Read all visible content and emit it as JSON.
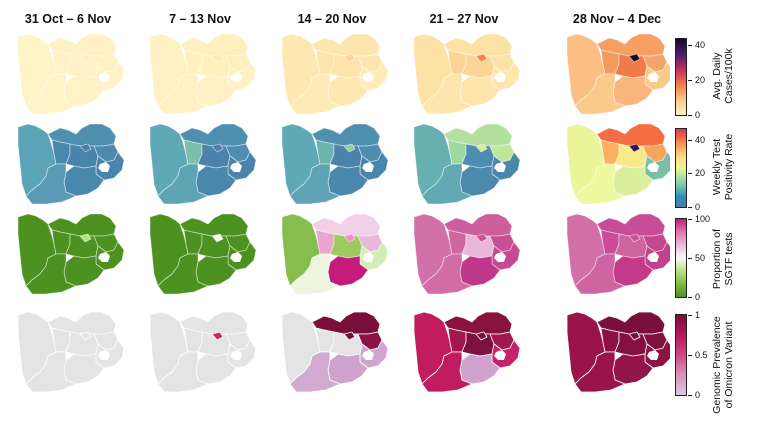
{
  "columns": [
    "31 Oct – 6 Nov",
    "7 – 13 Nov",
    "14 – 20 Nov",
    "21 – 27 Nov",
    "28 Nov – 4 Dec"
  ],
  "legends": [
    {
      "title_line1": "Avg. Daily",
      "title_line2": "Cases/100k",
      "ticks": [
        "40",
        "20",
        "0"
      ],
      "gradient": [
        "#15082a",
        "#4b1c6e",
        "#c02f60",
        "#f07a4a",
        "#fbc98a",
        "#fff2c8"
      ]
    },
    {
      "title_line1": "Weekly Test",
      "title_line2": "Positivity Rate",
      "ticks": [
        "40",
        "20",
        "0"
      ],
      "gradient": [
        "#d43d4f",
        "#f46d43",
        "#fdae61",
        "#fee08b",
        "#e6f598",
        "#abdda4",
        "#66c2a5",
        "#3288bd",
        "#4a7fa8"
      ]
    },
    {
      "title_line1": "Proportion of",
      "title_line2": "SGTF tests",
      "ticks": [
        "100",
        "50",
        "0"
      ],
      "gradient": [
        "#c51b7d",
        "#de77ae",
        "#f1b6da",
        "#f7f7f7",
        "#b8e186",
        "#7fbc41",
        "#4d9221"
      ]
    },
    {
      "title_line1": "Genomic Prevalence",
      "title_line2": "of Omicron Variant",
      "ticks": [
        "1",
        "0.5",
        "0"
      ],
      "gradient": [
        "#7a0f3a",
        "#b5185a",
        "#d1477f",
        "#d994bd",
        "#dcc6e0"
      ]
    }
  ],
  "map_colors": {
    "cases": [
      {
        "west": "#fff3c8",
        "north": "#fff1c3",
        "north_west": "#fff2c6",
        "free_state": "#fff2c6",
        "gauteng": "#ffefbe",
        "mpumalanga": "#fff1c3",
        "kzn": "#fff2c6",
        "east": "#fff2c6",
        "south": "#fff3c8"
      },
      {
        "west": "#fff1c3",
        "north": "#ffefbe",
        "north_west": "#fff0c0",
        "free_state": "#fff0c0",
        "gauteng": "#fee9b2",
        "mpumalanga": "#ffefbe",
        "kzn": "#fff1c3",
        "east": "#fff1c3",
        "south": "#fff1c3"
      },
      {
        "west": "#fde8b2",
        "north": "#fde6ad",
        "north_west": "#fde4aa",
        "free_state": "#fde4aa",
        "gauteng": "#fbd597",
        "mpumalanga": "#fde6ad",
        "kzn": "#feebb5",
        "east": "#fde8b2",
        "south": "#feebb5"
      },
      {
        "west": "#fde2a6",
        "north": "#fde2a6",
        "north_west": "#fbd597",
        "free_state": "#fbd597",
        "gauteng": "#f58456",
        "mpumalanga": "#fde2a6",
        "kzn": "#fde6ad",
        "east": "#fde4aa",
        "south": "#fde6ad"
      },
      {
        "west": "#fbbf84",
        "north": "#f59f63",
        "north_west": "#f49a60",
        "free_state": "#f07a4a",
        "gauteng": "#15082a",
        "mpumalanga": "#f6a56a",
        "kzn": "#fbc98a",
        "east": "#f9b57a",
        "south": "#fbc98a"
      }
    ],
    "positivity": [
      {
        "west": "#5ba3b6",
        "north": "#4f8fb0",
        "north_west": "#4a87ad",
        "free_state": "#4884ab",
        "gauteng": "#4a80a8",
        "mpumalanga": "#4d89ad",
        "kzn": "#4884ab",
        "east": "#4a87ad",
        "south": "#5a9ab4"
      },
      {
        "west": "#5fa8b6",
        "north": "#4f8fb0",
        "north_west": "#7bbfa8",
        "free_state": "#4a84ab",
        "gauteng": "#4a80a8",
        "mpumalanga": "#4f8db0",
        "kzn": "#4884ab",
        "east": "#4a87ad",
        "south": "#5ea4b4"
      },
      {
        "west": "#5fa8b6",
        "north": "#4f8fb0",
        "north_west": "#6cb4ab",
        "free_state": "#4a84ab",
        "gauteng": "#8ecfa4",
        "mpumalanga": "#4f8db0",
        "kzn": "#4884ab",
        "east": "#4a87ad",
        "south": "#5ea4b4"
      },
      {
        "west": "#66b0b1",
        "north": "#b4e09f",
        "north_west": "#9ed7a2",
        "free_state": "#4d8dae",
        "gauteng": "#d7ef9b",
        "mpumalanga": "#c3e69d",
        "kzn": "#4a87ad",
        "east": "#4d89ad",
        "south": "#63a9b4"
      },
      {
        "west": "#eaf59a",
        "north": "#f46d43",
        "north_west": "#fdae61",
        "free_state": "#f8e98c",
        "gauteng": "#311a4d",
        "mpumalanga": "#f9a45c",
        "kzn": "#77c0a4",
        "east": "#d9ef9b",
        "south": "#eef89e"
      }
    ],
    "sgtf": [
      {
        "west": "#4d9221",
        "north": "#4d9221",
        "north_west": "#4d9221",
        "free_state": "#4d9221",
        "gauteng": "#b8e186",
        "mpumalanga": "#4d9221",
        "kzn": "#4d9221",
        "east": "#4d9221",
        "south": "#4d9221"
      },
      {
        "west": "#4d9221",
        "north": "#4d9221",
        "north_west": "#4d9221",
        "free_state": "#4d9221",
        "gauteng": "#f7f7f7",
        "mpumalanga": "#4d9221",
        "kzn": "#4d9221",
        "east": "#4d9221",
        "south": "#4d9221"
      },
      {
        "west": "#86bd4d",
        "north": "#f1d0e6",
        "north_west": "#e8a6cf",
        "free_state": "#9cca5e",
        "gauteng": "#ed93c3",
        "mpumalanga": "#e8b9da",
        "kzn": "#d3edb6",
        "east": "#c51b7d",
        "south": "#eef5de"
      },
      {
        "west": "#d270a8",
        "north": "#cc5e9d",
        "north_west": "#cd67a2",
        "free_state": "#e9b8d8",
        "gauteng": "#c9509a",
        "mpumalanga": "#c74f97",
        "kzn": "#c44a92",
        "east": "#c0378b",
        "south": "#d16ca6"
      },
      {
        "west": "#d26fa7",
        "north": "#c94c96",
        "north_west": "#ca4c98",
        "free_state": "#cd63a1",
        "gauteng": "#c9519a",
        "mpumalanga": "#c44890",
        "kzn": "#c2418e",
        "east": "#c43a8b",
        "south": "#ce65a2"
      }
    ],
    "genomic": [
      {
        "west": "#e4e4e4",
        "north": "#e4e4e4",
        "north_west": "#e4e4e4",
        "free_state": "#e4e4e4",
        "gauteng": "#e4e4e4",
        "mpumalanga": "#e4e4e4",
        "kzn": "#e4e4e4",
        "east": "#e4e4e4",
        "south": "#e4e4e4"
      },
      {
        "west": "#e4e4e4",
        "north": "#e4e4e4",
        "north_west": "#e4e4e4",
        "free_state": "#e4e4e4",
        "gauteng": "#c7296d",
        "mpumalanga": "#e4e4e4",
        "kzn": "#e4e4e4",
        "east": "#e4e4e4",
        "south": "#e4e4e4"
      },
      {
        "west": "#e4e4e4",
        "north": "#7a0f3a",
        "north_west": "#e4e4e4",
        "free_state": "#e4e4e4",
        "gauteng": "#7a0f3a",
        "mpumalanga": "#8a1345",
        "kzn": "#d0a6cf",
        "east": "#cfa3cd",
        "south": "#d2a9d0"
      },
      {
        "west": "#c11c60",
        "north": "#88133f",
        "north_west": "#a0164d",
        "free_state": "#7f113d",
        "gauteng": "#7a0f3a",
        "mpumalanga": "#a3174f",
        "kzn": "#c6226a",
        "east": "#d0a2cd",
        "south": "#c11c60"
      },
      {
        "west": "#9a1449",
        "north": "#7a0f3a",
        "north_west": "#8b1242",
        "free_state": "#82113e",
        "gauteng": "#7a0f3a",
        "mpumalanga": "#80113d",
        "kzn": "#8c1344",
        "east": "#931447",
        "south": "#9a1449"
      }
    ]
  }
}
